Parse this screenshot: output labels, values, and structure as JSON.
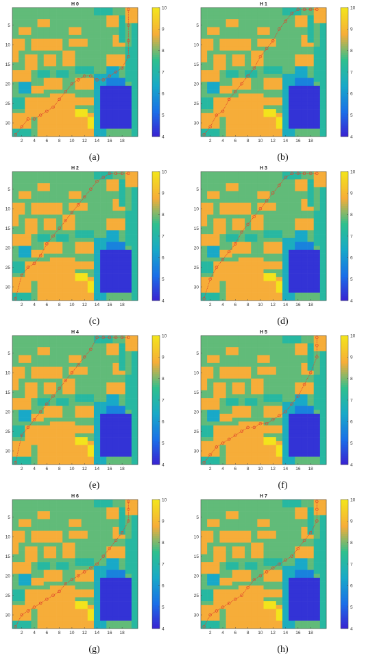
{
  "colors": {
    "scale": [
      "#3b1fd0",
      "#1a6fe8",
      "#18a9c8",
      "#2fc08e",
      "#f6ad39",
      "#f3e31c"
    ],
    "path": "#e0452e"
  },
  "panels": [
    {
      "id": "a",
      "caption": "(a)",
      "title": "H 0"
    },
    {
      "id": "b",
      "caption": "(b)",
      "title": "H 1"
    },
    {
      "id": "c",
      "caption": "(c)",
      "title": "H 2"
    },
    {
      "id": "d",
      "caption": "(d)",
      "title": "H 3"
    },
    {
      "id": "e",
      "caption": "(e)",
      "title": "H 4"
    },
    {
      "id": "f",
      "caption": "(f)",
      "title": "H 5"
    },
    {
      "id": "g",
      "caption": "(g)",
      "title": "H 6"
    },
    {
      "id": "h",
      "caption": "(h)",
      "title": "H 7"
    }
  ],
  "chart_data": {
    "type": "heatmap",
    "grid": {
      "cols": 20,
      "rows": 33
    },
    "xticks": [
      2,
      4,
      6,
      8,
      10,
      12,
      14,
      16,
      18
    ],
    "yticks": [
      5,
      10,
      15,
      20,
      25,
      30
    ],
    "colorbar": {
      "min": 4,
      "max": 10,
      "ticks": [
        4,
        5,
        6,
        7,
        8,
        9,
        10
      ]
    },
    "base_regions": [
      {
        "cols": [
          1,
          20
        ],
        "rows": [
          1,
          33
        ],
        "value": 7.9
      },
      {
        "cols": [
          2,
          3
        ],
        "rows": [
          6,
          7
        ],
        "value": 8.8
      },
      {
        "cols": [
          5,
          6
        ],
        "rows": [
          4,
          5
        ],
        "value": 8.8
      },
      {
        "cols": [
          10,
          11
        ],
        "rows": [
          6,
          7
        ],
        "value": 8.8
      },
      {
        "cols": [
          1,
          2
        ],
        "rows": [
          9,
          11
        ],
        "value": 8.8
      },
      {
        "cols": [
          4,
          8
        ],
        "rows": [
          9,
          11
        ],
        "value": 8.8
      },
      {
        "cols": [
          10,
          12
        ],
        "rows": [
          9,
          10
        ],
        "value": 8.8
      },
      {
        "cols": [
          17,
          18
        ],
        "rows": [
          8,
          10
        ],
        "value": 8.8
      },
      {
        "cols": [
          16,
          17
        ],
        "rows": [
          3,
          5
        ],
        "value": 8.8
      },
      {
        "cols": [
          18,
          18
        ],
        "rows": [
          3,
          9
        ],
        "value": 7.2
      },
      {
        "cols": [
          1,
          1
        ],
        "rows": [
          12,
          14
        ],
        "value": 8.8
      },
      {
        "cols": [
          3,
          4
        ],
        "rows": [
          13,
          16
        ],
        "value": 8.8
      },
      {
        "cols": [
          6,
          7
        ],
        "rows": [
          13,
          15
        ],
        "value": 8.8
      },
      {
        "cols": [
          9,
          10
        ],
        "rows": [
          12,
          15
        ],
        "value": 8.8
      },
      {
        "cols": [
          5,
          6
        ],
        "rows": [
          17,
          18
        ],
        "value": 7.2
      },
      {
        "cols": [
          8,
          9
        ],
        "rows": [
          17,
          18
        ],
        "value": 7.2
      },
      {
        "cols": [
          11,
          13
        ],
        "rows": [
          16,
          17
        ],
        "value": 7.2
      },
      {
        "cols": [
          16,
          19
        ],
        "rows": [
          13,
          15
        ],
        "value": 8.8
      },
      {
        "cols": [
          19,
          19
        ],
        "rows": [
          11,
          19
        ],
        "value": 7.2
      },
      {
        "cols": [
          1,
          3
        ],
        "rows": [
          17,
          19
        ],
        "value": 8.8
      },
      {
        "cols": [
          6,
          8
        ],
        "rows": [
          19,
          21
        ],
        "value": 8.8
      },
      {
        "cols": [
          11,
          13
        ],
        "rows": [
          19,
          21
        ],
        "value": 8.8
      },
      {
        "cols": [
          2,
          3
        ],
        "rows": [
          20,
          22
        ],
        "value": 6.4
      },
      {
        "cols": [
          4,
          5
        ],
        "rows": [
          21,
          22
        ],
        "value": 8.8
      },
      {
        "cols": [
          1,
          2
        ],
        "rows": [
          24,
          26
        ],
        "value": 7.2
      },
      {
        "cols": [
          3,
          6
        ],
        "rows": [
          24,
          28
        ],
        "value": 8.8
      },
      {
        "cols": [
          7,
          10
        ],
        "rows": [
          23,
          27
        ],
        "value": 8.8
      },
      {
        "cols": [
          11,
          13
        ],
        "rows": [
          24,
          25
        ],
        "value": 8.8
      },
      {
        "cols": [
          1,
          3
        ],
        "rows": [
          28,
          31
        ],
        "value": 8.8
      },
      {
        "cols": [
          5,
          13
        ],
        "rows": [
          28,
          33
        ],
        "value": 8.8
      },
      {
        "cols": [
          1,
          3
        ],
        "rows": [
          32,
          33
        ],
        "value": 7.2
      },
      {
        "cols": [
          11,
          12
        ],
        "rows": [
          27,
          28
        ],
        "value": 10
      },
      {
        "cols": [
          13,
          14
        ],
        "rows": [
          29,
          31
        ],
        "value": 10
      },
      {
        "cols": [
          14,
          15
        ],
        "rows": [
          18,
          33
        ],
        "value": 6.6
      },
      {
        "cols": [
          16,
          18
        ],
        "rows": [
          19,
          22
        ],
        "value": 5.6
      },
      {
        "cols": [
          15,
          19
        ],
        "rows": [
          21,
          31
        ],
        "value": 4.3
      },
      {
        "cols": [
          16,
          17
        ],
        "rows": [
          16,
          18
        ],
        "value": 6.4
      },
      {
        "cols": [
          14,
          16
        ],
        "rows": [
          1,
          2
        ],
        "value": 7.2
      },
      {
        "cols": [
          20,
          20
        ],
        "rows": [
          1,
          33
        ],
        "value": 7.2
      },
      {
        "cols": [
          19,
          20
        ],
        "rows": [
          1,
          4
        ],
        "value": 8.8
      }
    ],
    "paths": [
      {
        "panel": "H 0",
        "points": [
          [
            1,
            33
          ],
          [
            2,
            31
          ],
          [
            3,
            29
          ],
          [
            4,
            29
          ],
          [
            5,
            28
          ],
          [
            6,
            27
          ],
          [
            7,
            26
          ],
          [
            8,
            24
          ],
          [
            9,
            22
          ],
          [
            10,
            20
          ],
          [
            11,
            19
          ],
          [
            12,
            18
          ],
          [
            13,
            18
          ],
          [
            14,
            19
          ],
          [
            15,
            19
          ],
          [
            16,
            18
          ],
          [
            17,
            17
          ],
          [
            18,
            16
          ],
          [
            19,
            13
          ],
          [
            19,
            9
          ],
          [
            19,
            5
          ],
          [
            19,
            1
          ]
        ]
      },
      {
        "panel": "H 1",
        "points": [
          [
            1,
            33
          ],
          [
            2,
            31
          ],
          [
            3,
            28
          ],
          [
            4,
            27
          ],
          [
            5,
            24
          ],
          [
            6,
            22
          ],
          [
            7,
            20
          ],
          [
            8,
            18
          ],
          [
            9,
            16
          ],
          [
            10,
            13
          ],
          [
            11,
            11
          ],
          [
            12,
            9
          ],
          [
            13,
            6
          ],
          [
            14,
            4
          ],
          [
            15,
            2
          ],
          [
            16,
            1
          ],
          [
            17,
            1
          ],
          [
            18,
            1
          ],
          [
            19,
            1
          ]
        ]
      },
      {
        "panel": "H 2",
        "points": [
          [
            1,
            33
          ],
          [
            2,
            27
          ],
          [
            3,
            25
          ],
          [
            4,
            24
          ],
          [
            5,
            22
          ],
          [
            6,
            19
          ],
          [
            7,
            17
          ],
          [
            8,
            15
          ],
          [
            9,
            13
          ],
          [
            10,
            11
          ],
          [
            11,
            9
          ],
          [
            12,
            7
          ],
          [
            13,
            5
          ],
          [
            14,
            3
          ],
          [
            15,
            2
          ],
          [
            16,
            1
          ],
          [
            17,
            1
          ],
          [
            18,
            1
          ],
          [
            19,
            1
          ]
        ]
      },
      {
        "panel": "H 3",
        "points": [
          [
            1,
            33
          ],
          [
            2,
            28
          ],
          [
            3,
            25
          ],
          [
            4,
            23
          ],
          [
            5,
            21
          ],
          [
            6,
            19
          ],
          [
            7,
            16
          ],
          [
            8,
            14
          ],
          [
            9,
            12
          ],
          [
            10,
            10
          ],
          [
            11,
            8
          ],
          [
            12,
            6
          ],
          [
            13,
            4
          ],
          [
            14,
            2
          ],
          [
            15,
            1
          ],
          [
            16,
            1
          ],
          [
            17,
            1
          ],
          [
            18,
            1
          ],
          [
            19,
            1
          ]
        ]
      },
      {
        "panel": "H 4",
        "points": [
          [
            1,
            33
          ],
          [
            2,
            26
          ],
          [
            3,
            24
          ],
          [
            4,
            22
          ],
          [
            5,
            20
          ],
          [
            6,
            18
          ],
          [
            7,
            16
          ],
          [
            8,
            14
          ],
          [
            9,
            12
          ],
          [
            10,
            10
          ],
          [
            11,
            8
          ],
          [
            12,
            6
          ],
          [
            13,
            4
          ],
          [
            14,
            1
          ],
          [
            15,
            1
          ],
          [
            16,
            1
          ],
          [
            17,
            1
          ],
          [
            18,
            1
          ],
          [
            19,
            1
          ]
        ]
      },
      {
        "panel": "H 5",
        "points": [
          [
            1,
            33
          ],
          [
            2,
            31
          ],
          [
            3,
            29
          ],
          [
            4,
            28
          ],
          [
            5,
            27
          ],
          [
            6,
            26
          ],
          [
            7,
            25
          ],
          [
            8,
            24
          ],
          [
            9,
            24
          ],
          [
            10,
            23
          ],
          [
            11,
            23
          ],
          [
            12,
            22
          ],
          [
            13,
            21
          ],
          [
            14,
            20
          ],
          [
            15,
            18
          ],
          [
            16,
            16
          ],
          [
            17,
            13
          ],
          [
            18,
            10
          ],
          [
            19,
            6
          ],
          [
            19,
            3
          ],
          [
            19,
            1
          ]
        ]
      },
      {
        "panel": "H 6",
        "points": [
          [
            1,
            33
          ],
          [
            2,
            30
          ],
          [
            3,
            29
          ],
          [
            4,
            28
          ],
          [
            5,
            27
          ],
          [
            6,
            26
          ],
          [
            7,
            25
          ],
          [
            8,
            24
          ],
          [
            9,
            22
          ],
          [
            10,
            21
          ],
          [
            11,
            20
          ],
          [
            12,
            19
          ],
          [
            13,
            18
          ],
          [
            14,
            17
          ],
          [
            15,
            15
          ],
          [
            16,
            13
          ],
          [
            17,
            11
          ],
          [
            18,
            9
          ],
          [
            19,
            6
          ],
          [
            19,
            3
          ],
          [
            19,
            1
          ]
        ]
      },
      {
        "panel": "H 7",
        "points": [
          [
            1,
            33
          ],
          [
            2,
            30
          ],
          [
            3,
            29
          ],
          [
            4,
            28
          ],
          [
            5,
            27
          ],
          [
            6,
            26
          ],
          [
            7,
            25
          ],
          [
            8,
            23
          ],
          [
            9,
            21
          ],
          [
            10,
            20
          ],
          [
            11,
            19
          ],
          [
            12,
            18
          ],
          [
            13,
            17
          ],
          [
            14,
            16
          ],
          [
            15,
            15
          ],
          [
            16,
            13
          ],
          [
            17,
            11
          ],
          [
            18,
            9
          ],
          [
            19,
            6
          ],
          [
            19,
            3
          ],
          [
            19,
            1
          ]
        ]
      }
    ]
  }
}
